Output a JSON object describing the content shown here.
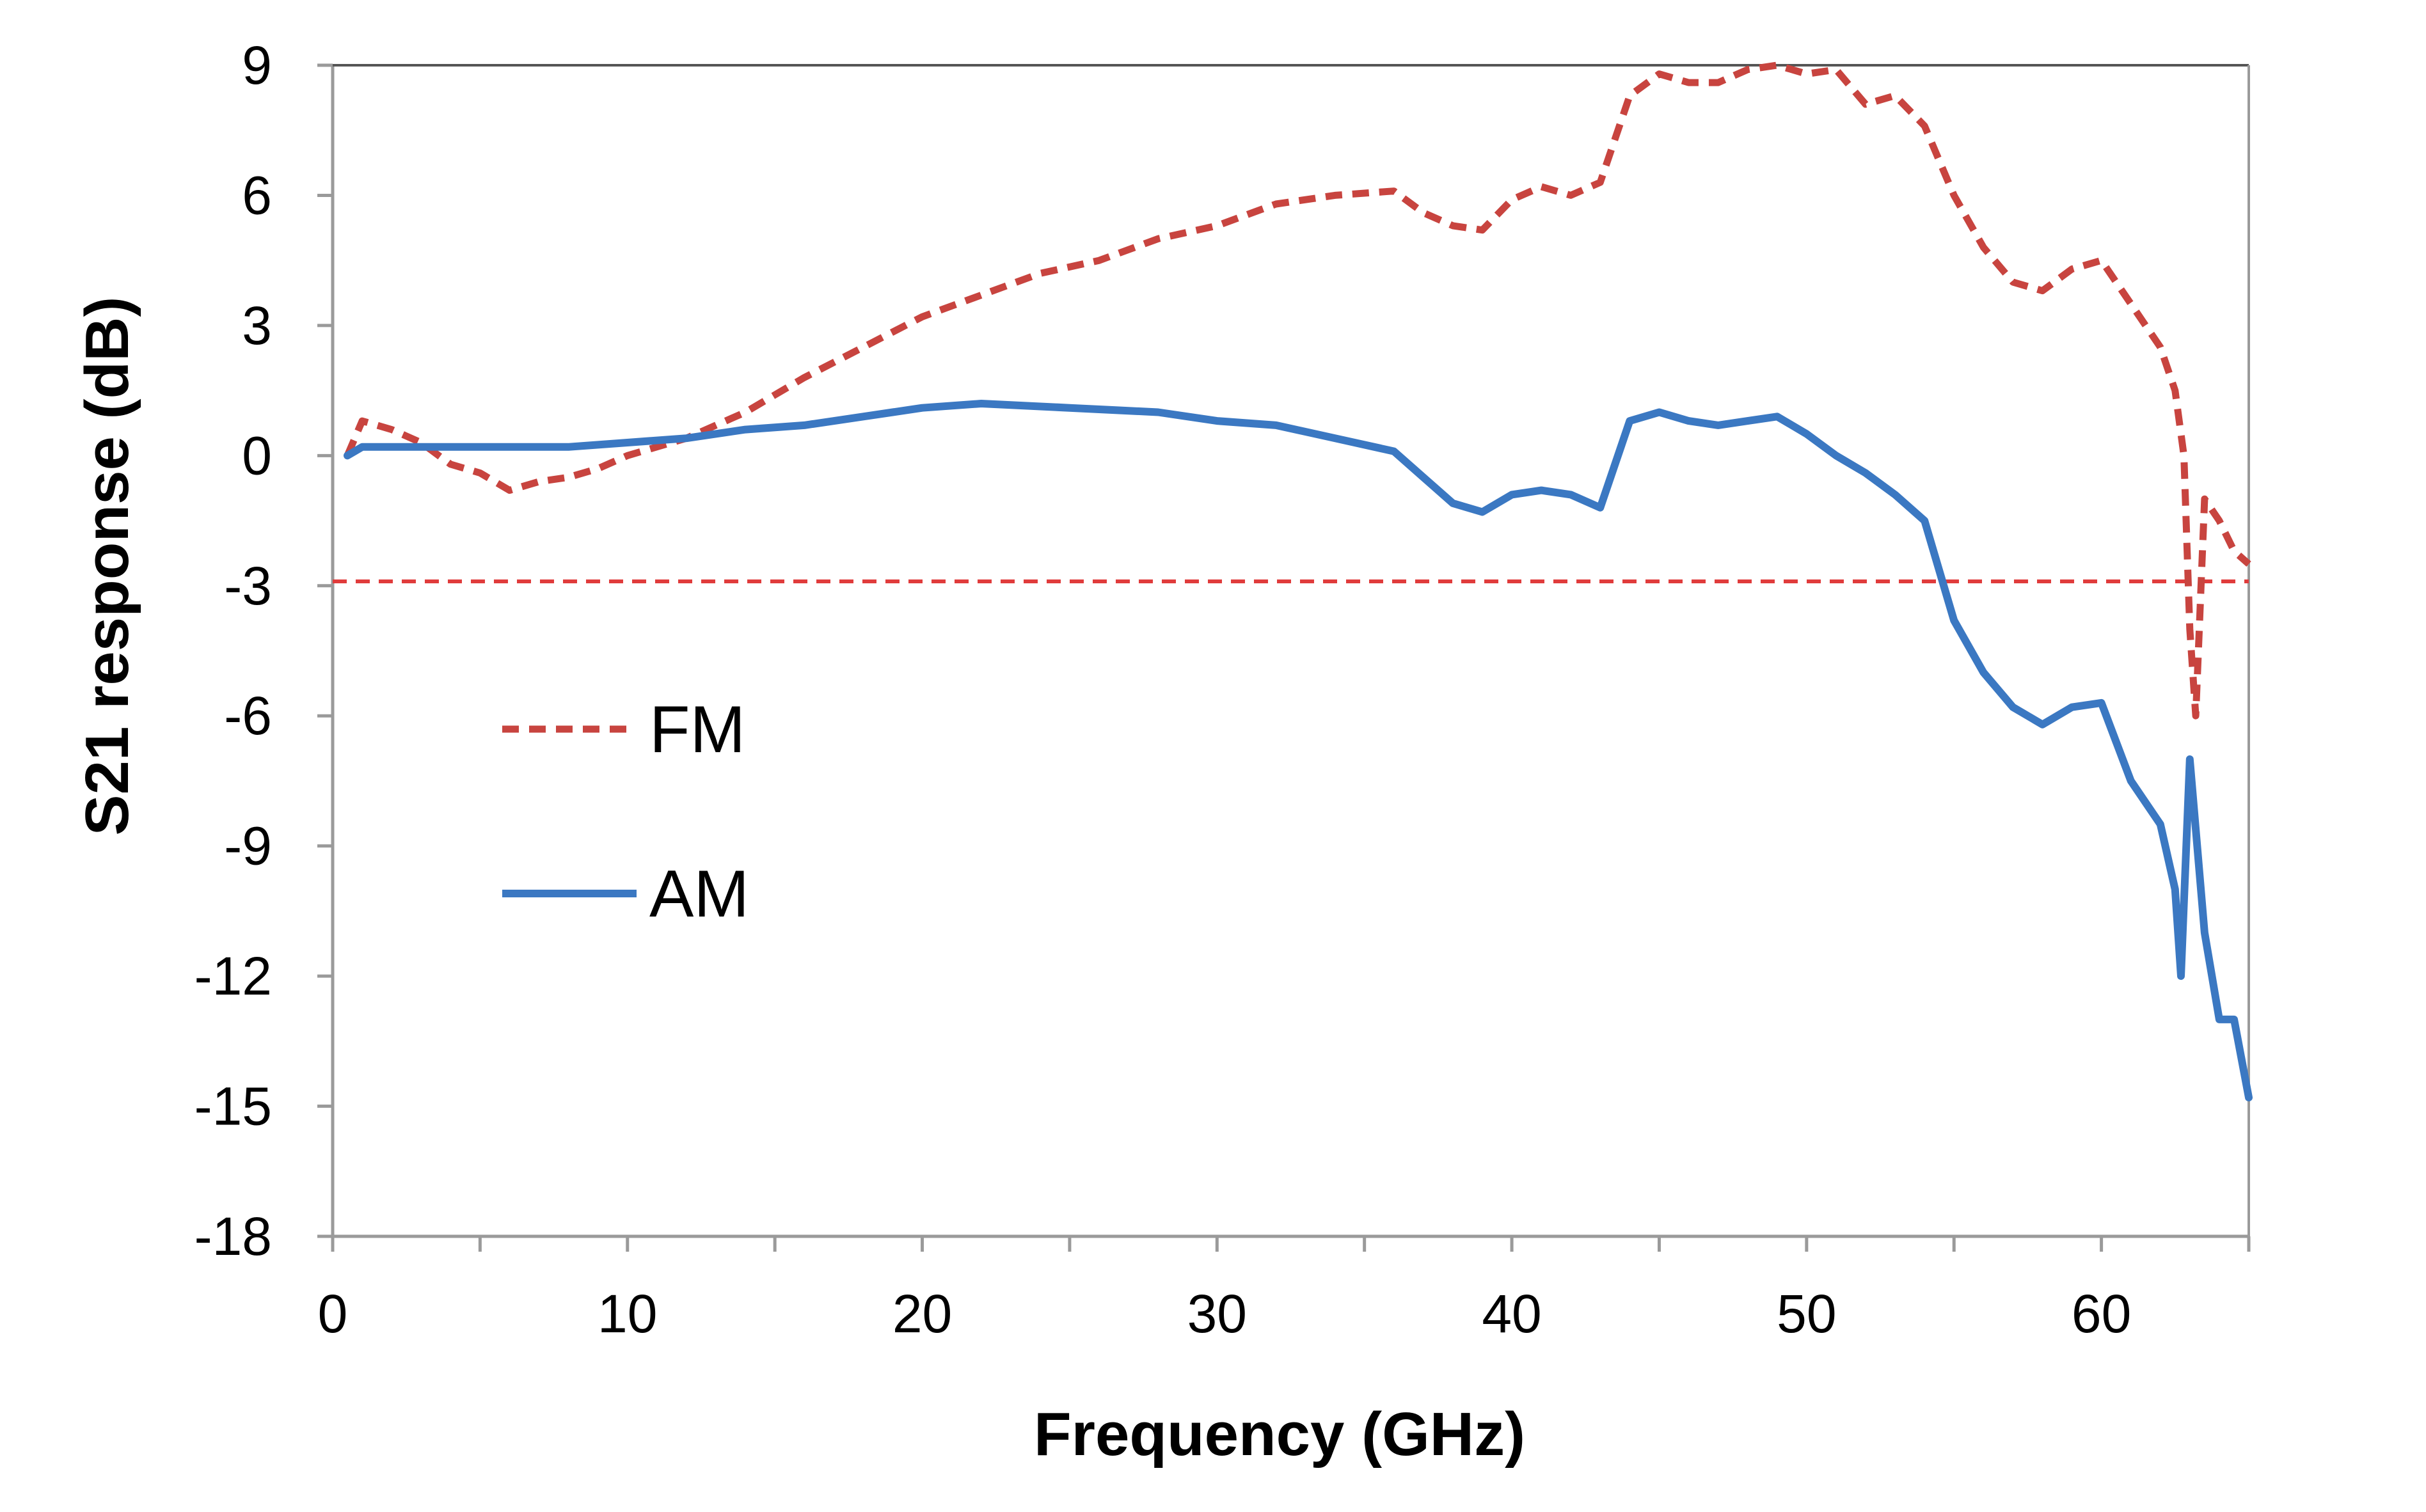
{
  "chart_data": {
    "type": "line",
    "title": "",
    "xlabel": "Frequency (GHz)",
    "ylabel": "S21 response (dB)",
    "xlim": [
      0,
      65
    ],
    "ylim": [
      -18,
      9
    ],
    "x_ticks": [
      0,
      10,
      20,
      30,
      40,
      50,
      60
    ],
    "y_ticks": [
      9,
      6,
      3,
      0,
      -3,
      -6,
      -9,
      -12,
      -15,
      -18
    ],
    "grid": false,
    "legend_position": "middle-left",
    "reference_line": {
      "y": -2.9,
      "style": "dashed",
      "color": "#e03c3c"
    },
    "series": [
      {
        "name": "FM",
        "style": "dashed",
        "color": "#c8443f",
        "points": [
          [
            0.5,
            0
          ],
          [
            1,
            0.8
          ],
          [
            2,
            0.6
          ],
          [
            3,
            0.3
          ],
          [
            4,
            -0.2
          ],
          [
            5,
            -0.4
          ],
          [
            6,
            -0.8
          ],
          [
            7,
            -0.6
          ],
          [
            8,
            -0.5
          ],
          [
            9,
            -0.3
          ],
          [
            10,
            0
          ],
          [
            12,
            0.4
          ],
          [
            14,
            1
          ],
          [
            16,
            1.8
          ],
          [
            18,
            2.5
          ],
          [
            20,
            3.2
          ],
          [
            22,
            3.7
          ],
          [
            24,
            4.2
          ],
          [
            26,
            4.5
          ],
          [
            28,
            5
          ],
          [
            30,
            5.3
          ],
          [
            32,
            5.8
          ],
          [
            34,
            6
          ],
          [
            36,
            6.1
          ],
          [
            37,
            5.6
          ],
          [
            38,
            5.3
          ],
          [
            39,
            5.2
          ],
          [
            40,
            5.9
          ],
          [
            41,
            6.2
          ],
          [
            42,
            6
          ],
          [
            43,
            6.3
          ],
          [
            44,
            8.3
          ],
          [
            45,
            8.8
          ],
          [
            46,
            8.6
          ],
          [
            47,
            8.6
          ],
          [
            48,
            8.9
          ],
          [
            49,
            9
          ],
          [
            50,
            8.8
          ],
          [
            51,
            8.9
          ],
          [
            52,
            8.1
          ],
          [
            53,
            8.3
          ],
          [
            54,
            7.6
          ],
          [
            55,
            6
          ],
          [
            56,
            4.8
          ],
          [
            57,
            4
          ],
          [
            58,
            3.8
          ],
          [
            59,
            4.3
          ],
          [
            60,
            4.5
          ],
          [
            61,
            3.5
          ],
          [
            61.5,
            3
          ],
          [
            62,
            2.5
          ],
          [
            62.5,
            1.5
          ],
          [
            62.8,
            0
          ],
          [
            63,
            -4
          ],
          [
            63.2,
            -6
          ],
          [
            63.5,
            -1
          ],
          [
            64,
            -1.5
          ],
          [
            64.5,
            -2.2
          ],
          [
            65,
            -2.5
          ]
        ]
      },
      {
        "name": "AM",
        "style": "solid",
        "color": "#3b78c2",
        "points": [
          [
            0.5,
            0
          ],
          [
            1,
            0.2
          ],
          [
            4,
            0.2
          ],
          [
            8,
            0.2
          ],
          [
            10,
            0.3
          ],
          [
            12,
            0.4
          ],
          [
            14,
            0.6
          ],
          [
            16,
            0.7
          ],
          [
            18,
            0.9
          ],
          [
            20,
            1.1
          ],
          [
            22,
            1.2
          ],
          [
            25,
            1.1
          ],
          [
            28,
            1
          ],
          [
            30,
            0.8
          ],
          [
            32,
            0.7
          ],
          [
            34,
            0.4
          ],
          [
            36,
            0.1
          ],
          [
            37,
            -0.5
          ],
          [
            38,
            -1.1
          ],
          [
            39,
            -1.3
          ],
          [
            40,
            -0.9
          ],
          [
            41,
            -0.8
          ],
          [
            42,
            -0.9
          ],
          [
            43,
            -1.2
          ],
          [
            44,
            0.8
          ],
          [
            45,
            1
          ],
          [
            46,
            0.8
          ],
          [
            47,
            0.7
          ],
          [
            48,
            0.8
          ],
          [
            49,
            0.9
          ],
          [
            50,
            0.5
          ],
          [
            51,
            0
          ],
          [
            52,
            -0.4
          ],
          [
            53,
            -0.9
          ],
          [
            54,
            -1.5
          ],
          [
            55,
            -3.8
          ],
          [
            56,
            -5
          ],
          [
            57,
            -5.8
          ],
          [
            58,
            -6.2
          ],
          [
            59,
            -5.8
          ],
          [
            60,
            -5.7
          ],
          [
            61,
            -7.5
          ],
          [
            62,
            -8.5
          ],
          [
            62.5,
            -10
          ],
          [
            62.7,
            -12
          ],
          [
            63,
            -7
          ],
          [
            63.5,
            -11
          ],
          [
            64,
            -13
          ],
          [
            64.5,
            -13
          ],
          [
            65,
            -14.8
          ]
        ]
      }
    ]
  }
}
